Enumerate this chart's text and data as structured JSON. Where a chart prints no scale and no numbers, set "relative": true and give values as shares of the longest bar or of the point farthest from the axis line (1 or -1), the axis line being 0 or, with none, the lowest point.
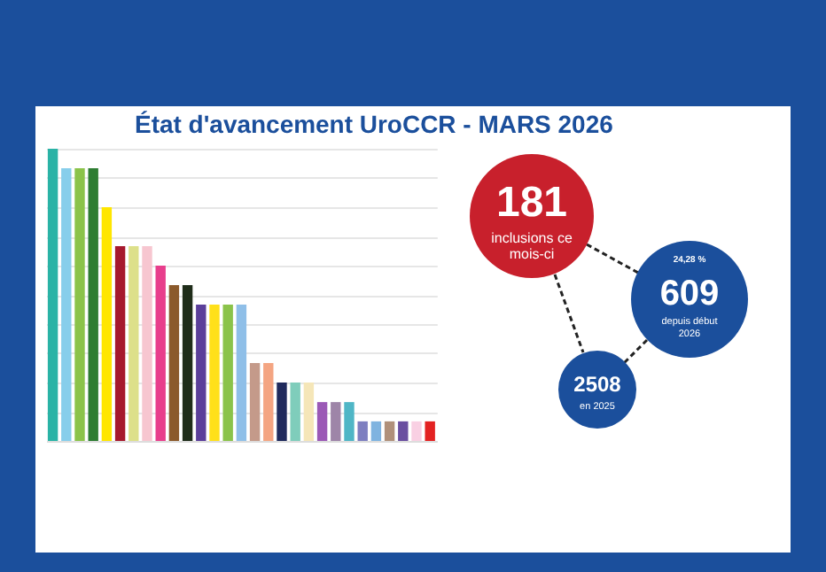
{
  "chart_data": [
    {
      "type": "bar",
      "title": "État d'avancement UroCCR - MARS 2026",
      "relative": true,
      "grid": "y",
      "categories": [
        null,
        null,
        null,
        null,
        null,
        null,
        null,
        null,
        null,
        null,
        null,
        null,
        null,
        null,
        null,
        null,
        null,
        null,
        null,
        null,
        null,
        null,
        null,
        null,
        null,
        null,
        null,
        null,
        null
      ],
      "values": [
        1,
        0.933,
        0.933,
        0.933,
        0.8,
        0.667,
        0.667,
        0.667,
        0.6,
        0.533,
        0.533,
        0.467,
        0.467,
        0.467,
        0.467,
        0.267,
        0.267,
        0.2,
        0.2,
        0.2,
        0.133,
        0.133,
        0.133,
        0.067,
        0.067,
        0.067,
        0.067,
        0.067,
        0.067
      ],
      "colors": [
        "#2ab3a6",
        "#87ceeb",
        "#8bc34a",
        "#2e7d32",
        "#ffe600",
        "#a6192e",
        "#dde08a",
        "#f7c6d0",
        "#e83e8c",
        "#8b5a2b",
        "#1f2d1a",
        "#5b3f9a",
        "#ffe01a",
        "#8bc34a",
        "#8fbfe8",
        "#c49a8a",
        "#f4a582",
        "#1f2a5c",
        "#7fcdbb",
        "#f5e6b8",
        "#9b59b6",
        "#9e85a8",
        "#4fb6c6",
        "#7e7fc0",
        "#7fb3e0",
        "#b0907a",
        "#6a4fa0",
        "#f9d0e3",
        "#e32222"
      ]
    },
    {
      "type": "other",
      "annotations": [
        "181",
        "inclusions ce mois-ci",
        "609",
        "depuis début 2026",
        "24,28 %",
        "2508",
        "en 2025"
      ]
    }
  ]
}
